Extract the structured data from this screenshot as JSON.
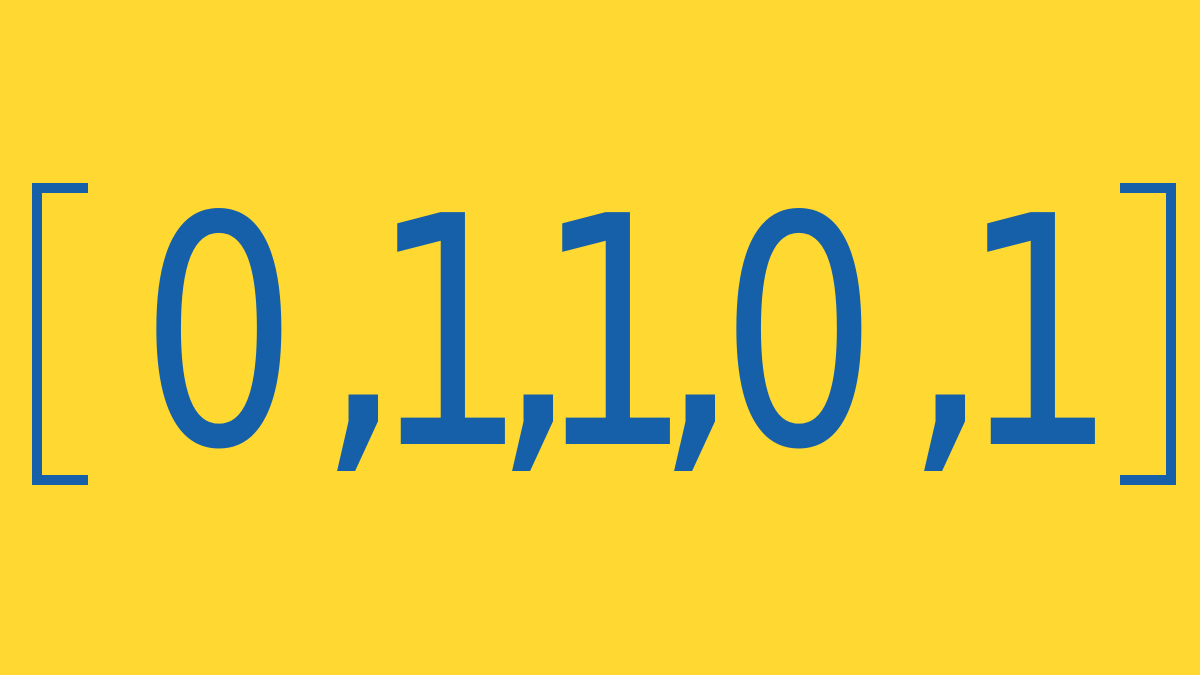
{
  "sequence": {
    "open_bracket": "[",
    "close_bracket": "]",
    "items": [
      "0",
      "1",
      "1",
      "0",
      "1"
    ],
    "separator": ","
  },
  "colors": {
    "background": "#FFD832",
    "text": "#1560A8"
  }
}
